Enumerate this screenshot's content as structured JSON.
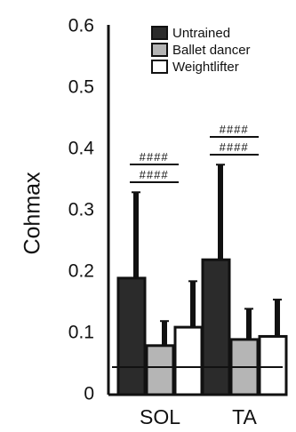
{
  "chart_data": {
    "type": "bar",
    "categories": [
      "SOL",
      "TA"
    ],
    "ylabel": "Cohmax",
    "xlabel": "",
    "title": "",
    "ylim": [
      0,
      0.6
    ],
    "yticks": [
      0,
      0.1,
      0.2,
      0.3,
      0.4,
      0.5,
      0.6
    ],
    "ytick_labels": [
      "0",
      "0.1",
      "0.2",
      "0.3",
      "0.4",
      "0.5",
      "0.6"
    ],
    "grid": false,
    "legend_position": "top-right",
    "series": [
      {
        "name": "Untrained",
        "color": "#2b2b2b",
        "values": [
          0.19,
          0.22
        ],
        "errors": [
          0.14,
          0.155
        ]
      },
      {
        "name": "Ballet dancer",
        "color": "#b5b5b5",
        "values": [
          0.08,
          0.09
        ],
        "errors": [
          0.04,
          0.05
        ]
      },
      {
        "name": "Weightlifter",
        "color": "#ffffff",
        "values": [
          0.11,
          0.095
        ],
        "errors": [
          0.075,
          0.06
        ]
      }
    ],
    "reference_line": 0.045,
    "annotations": [
      {
        "category": "SOL",
        "texts": [
          "####",
          "####"
        ]
      },
      {
        "category": "TA",
        "texts": [
          "####",
          "####"
        ]
      }
    ]
  }
}
